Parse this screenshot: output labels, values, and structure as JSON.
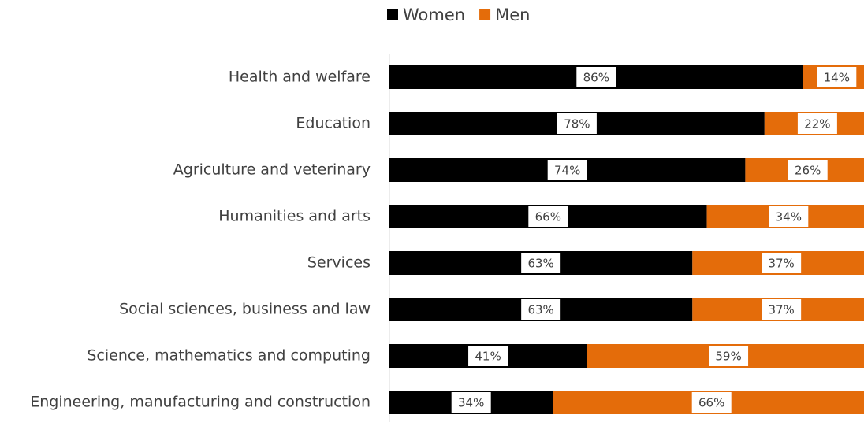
{
  "chart_data": {
    "type": "stacked-barh",
    "categories": [
      "Health and welfare",
      "Education",
      "Agriculture and veterinary",
      "Humanities and arts",
      "Services",
      "Social sciences, business and law",
      "Science, mathematics and computing",
      "Engineering, manufacturing and construction"
    ],
    "series": [
      {
        "name": "Women",
        "color": "#000000",
        "values": [
          86,
          78,
          74,
          66,
          63,
          63,
          41,
          34
        ],
        "value_labels": [
          "86%",
          "78%",
          "74%",
          "66%",
          "63%",
          "63%",
          "41%",
          "34%"
        ]
      },
      {
        "name": "Men",
        "color": "#e46c0a",
        "values": [
          14,
          22,
          26,
          34,
          37,
          37,
          59,
          66
        ],
        "value_labels": [
          "14%",
          "22%",
          "26%",
          "34%",
          "37%",
          "37%",
          "59%",
          "66%"
        ]
      }
    ],
    "xlim": [
      0,
      100
    ],
    "legend": "top"
  }
}
